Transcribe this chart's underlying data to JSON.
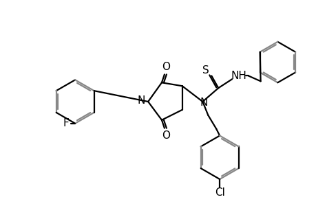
{
  "background_color": "#ffffff",
  "line_color": "#000000",
  "gray_color": "#888888",
  "lw": 1.6,
  "figsize": [
    4.6,
    3.0
  ],
  "dpi": 100,
  "xlim": [
    0,
    460
  ],
  "ylim": [
    0,
    300
  ]
}
